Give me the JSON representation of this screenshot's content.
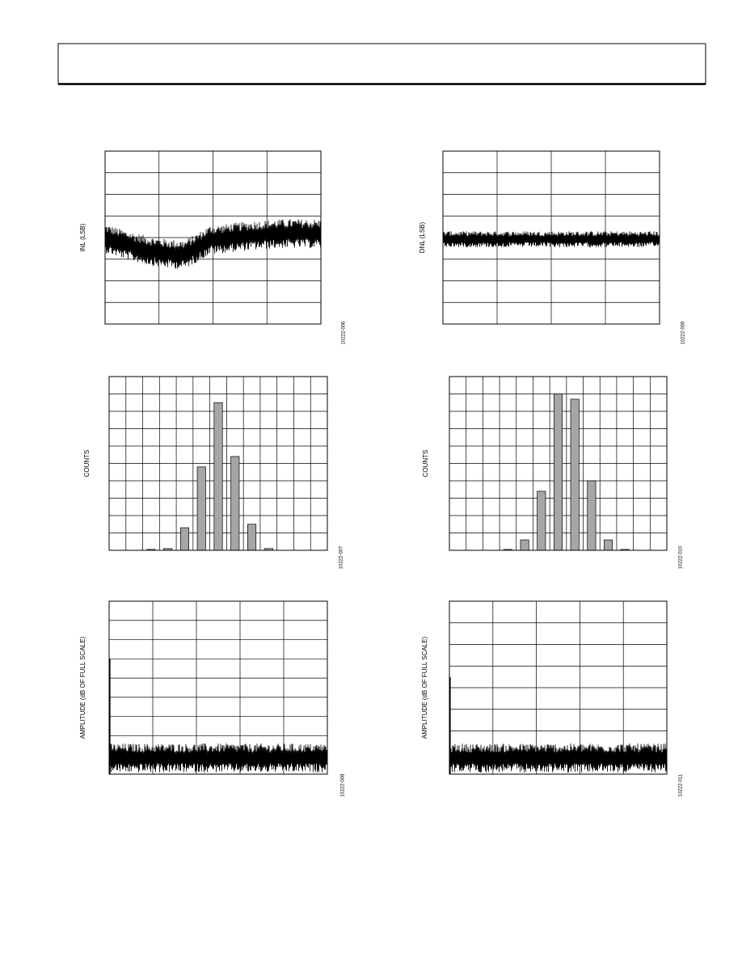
{
  "chart_data": [
    {
      "type": "line",
      "y_label": "INL (LSB)",
      "figure_id": "10222-006"
    },
    {
      "type": "line",
      "y_label": "DNL (LSB)",
      "figure_id": "10222-009"
    },
    {
      "type": "bar",
      "y_label": "COUNTS",
      "figure_id": "10222-007",
      "categories": [
        null,
        null,
        null,
        null,
        null,
        null,
        null,
        null,
        null,
        null,
        null,
        null,
        null
      ],
      "values": [
        0,
        0,
        0.05,
        0.1,
        1.3,
        4.8,
        8.5,
        5.4,
        1.5,
        0.1,
        0,
        0,
        0
      ],
      "color": "#a6a6a6",
      "ylim": [
        0,
        10
      ]
    },
    {
      "type": "bar",
      "y_label": "COUNTS",
      "figure_id": "10222-010",
      "categories": [
        null,
        null,
        null,
        null,
        null,
        null,
        null,
        null,
        null,
        null,
        null,
        null,
        null
      ],
      "values": [
        0,
        0,
        0,
        0.05,
        0.6,
        3.4,
        9.0,
        8.7,
        4.0,
        0.6,
        0.05,
        0,
        0
      ],
      "color": "#a6a6a6",
      "ylim": [
        0,
        10
      ]
    },
    {
      "type": "line",
      "y_label": "AMPLITUDE (dB OF FULL SCALE)",
      "figure_id": "10222-008"
    },
    {
      "type": "line",
      "y_label": "AMPLITUDE (dB OF FULL SCALE)",
      "figure_id": "10222-011"
    }
  ]
}
